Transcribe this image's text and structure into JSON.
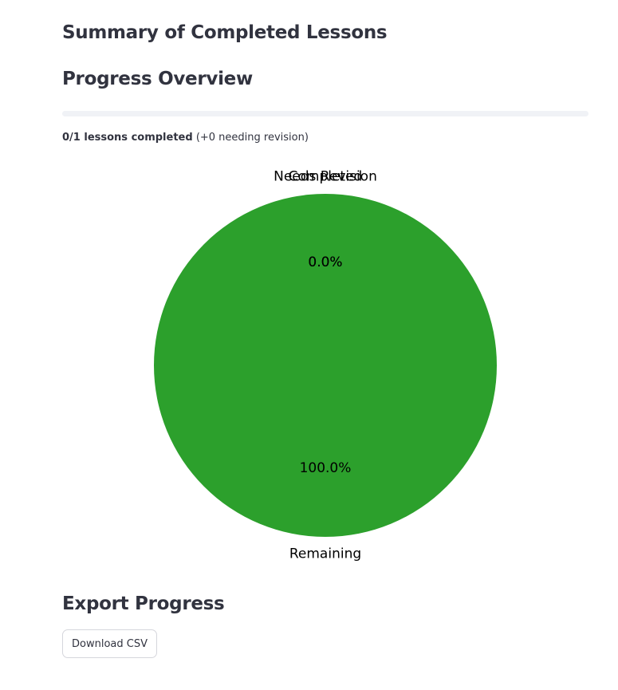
{
  "headings": {
    "summary": "Summary of Completed Lessons",
    "progress": "Progress Overview",
    "export": "Export Progress"
  },
  "progress": {
    "completed": 0,
    "total": 1,
    "fraction": 0.0,
    "caption_bold": "0/1 lessons completed",
    "caption_rest": "(+0 needing revision)",
    "fill_color": "#ff4b4b",
    "track_color": "#f0f2f6"
  },
  "chart_data": {
    "type": "pie",
    "slices": [
      {
        "label": "Completed",
        "value": 0,
        "pct_label": "0.0%",
        "color": "#1f77b4"
      },
      {
        "label": "Needs Revision",
        "value": 0,
        "pct_label": "0.0%",
        "color": "#ff7f0e"
      },
      {
        "label": "Remaining",
        "value": 1,
        "pct_label": "100.0%",
        "color": "#2ca02c"
      }
    ],
    "start_angle_deg": 90,
    "title": "",
    "legend": "none"
  },
  "export": {
    "button_label": "Download CSV"
  }
}
